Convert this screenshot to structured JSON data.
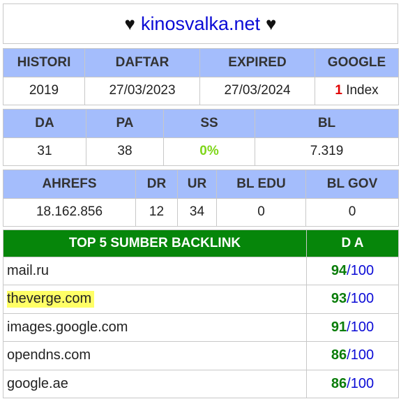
{
  "header": {
    "heart": "♥",
    "site": "kinosvalka.net"
  },
  "table1": {
    "headers": [
      "HISTORI",
      "DAFTAR",
      "EXPIRED",
      "GOOGLE"
    ],
    "values": {
      "histori": "2019",
      "daftar": "27/03/2023",
      "expired": "27/03/2024",
      "google_count": "1",
      "google_label": "Index"
    }
  },
  "table2": {
    "headers": [
      "DA",
      "PA",
      "SS",
      "BL"
    ],
    "values": {
      "da": "31",
      "pa": "38",
      "ss": "0%",
      "bl": "7.319"
    }
  },
  "table3": {
    "headers": [
      "AHREFS",
      "DR",
      "UR",
      "BL EDU",
      "BL GOV"
    ],
    "values": {
      "ahrefs": "18.162.856",
      "dr": "12",
      "ur": "34",
      "bl_edu": "0",
      "bl_gov": "0"
    }
  },
  "backlinks": {
    "headers": [
      "TOP 5 SUMBER BACKLINK",
      "D A"
    ],
    "rows": [
      {
        "domain": "mail.ru",
        "da": "94",
        "max": "/100"
      },
      {
        "domain": "theverge.com",
        "da": "93",
        "max": "/100"
      },
      {
        "domain": "images.google.com",
        "da": "91",
        "max": "/100"
      },
      {
        "domain": "opendns.com",
        "da": "86",
        "max": "/100"
      },
      {
        "domain": "google.ae",
        "da": "86",
        "max": "/100"
      }
    ]
  },
  "colors": {
    "header_bg": "#a4bdfc",
    "backlink_header_bg": "#06860a",
    "link_blue": "#0b0bd6",
    "ss_green": "#7fd61a",
    "highlight": "#ffff66"
  }
}
